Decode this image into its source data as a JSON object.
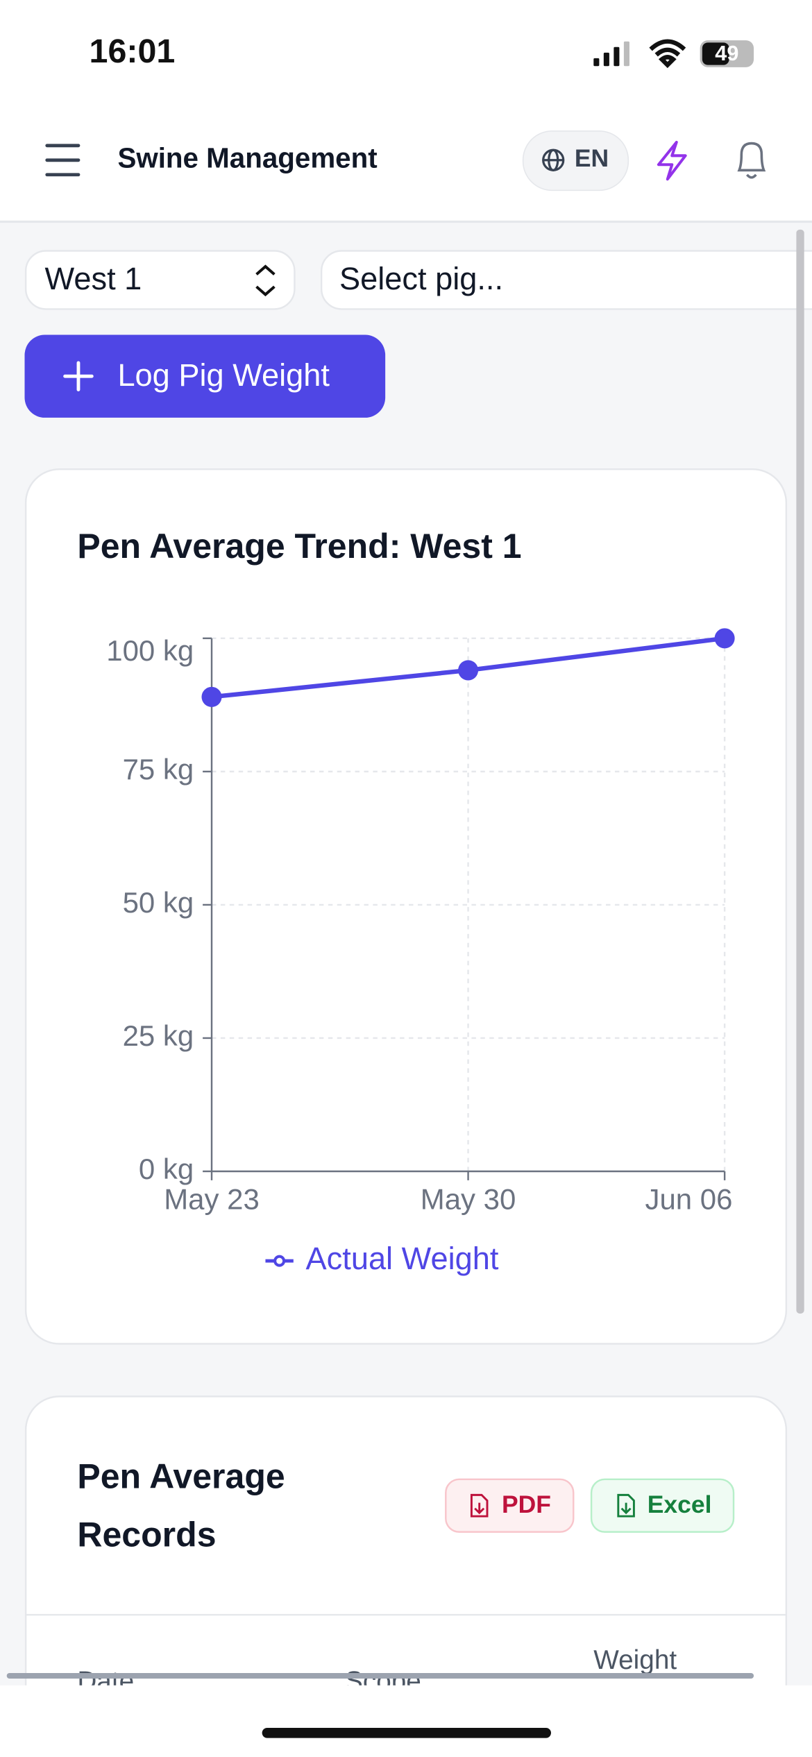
{
  "status_bar": {
    "time": "16:01",
    "battery": "49"
  },
  "header": {
    "title": "Swine Management",
    "language": "EN"
  },
  "filters": {
    "pen": "West 1",
    "pig": "Select pig..."
  },
  "actions": {
    "log_button": "Log Pig Weight"
  },
  "chart_data": {
    "type": "line",
    "title": "Pen Average Trend: West 1",
    "categories": [
      "May 23",
      "May 30",
      "Jun 06"
    ],
    "series": [
      {
        "name": "Actual Weight",
        "color": "#4f46e5",
        "values": [
          89,
          94,
          100
        ]
      }
    ],
    "ylim": [
      0,
      100
    ],
    "yticks": [
      {
        "value": 0,
        "label": "0 kg"
      },
      {
        "value": 25,
        "label": "25 kg"
      },
      {
        "value": 50,
        "label": "50 kg"
      },
      {
        "value": 75,
        "label": "75 kg"
      },
      {
        "value": 100,
        "label": "100 kg"
      }
    ],
    "grid": true
  },
  "records": {
    "title": "Pen Average Records",
    "export_pdf": "PDF",
    "export_excel": "Excel",
    "columns": [
      "Date",
      "Scope",
      "Weight"
    ]
  }
}
